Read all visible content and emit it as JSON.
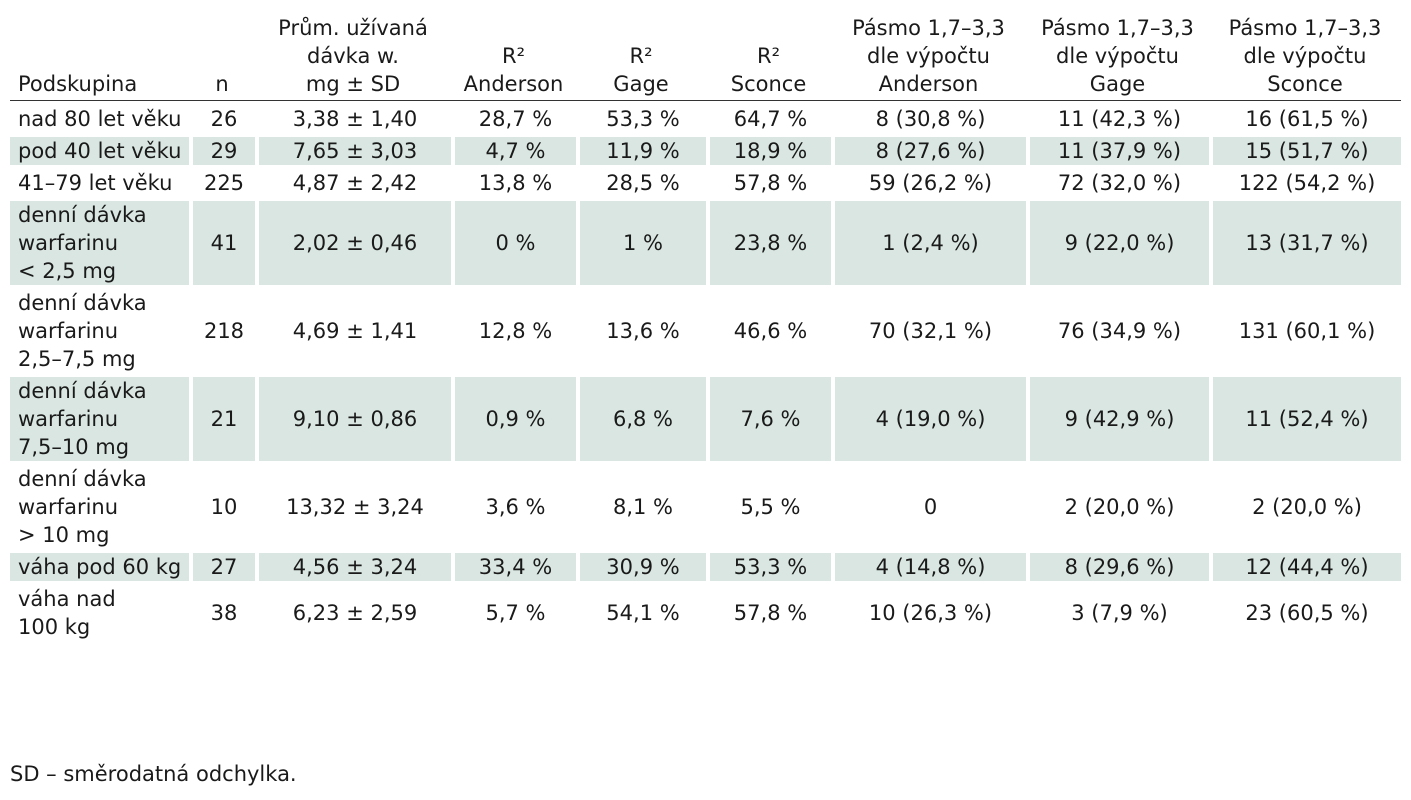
{
  "table": {
    "headers": [
      [
        "Podskupina"
      ],
      [
        "n"
      ],
      [
        "Prům. užívaná",
        "dávka w.",
        "mg ± SD"
      ],
      [
        "R²",
        "Anderson"
      ],
      [
        "R²",
        "Gage"
      ],
      [
        "R²",
        "Sconce"
      ],
      [
        "Pásmo 1,7–3,3",
        "dle výpočtu",
        "Anderson"
      ],
      [
        "Pásmo 1,7–3,3",
        "dle výpočtu",
        "Gage"
      ],
      [
        "Pásmo 1,7–3,3",
        "dle výpočtu",
        "Sconce"
      ]
    ],
    "rows": [
      {
        "shaded": false,
        "label": [
          "nad 80 let věku"
        ],
        "cells": [
          "26",
          "3,38 ± 1,40",
          "28,7 %",
          "53,3 %",
          "64,7 %",
          "8 (30,8 %)",
          "11 (42,3 %)",
          "16 (61,5 %)"
        ]
      },
      {
        "shaded": true,
        "label": [
          "pod 40 let věku"
        ],
        "cells": [
          "29",
          "7,65 ± 3,03",
          "4,7 %",
          "11,9 %",
          "18,9 %",
          "8 (27,6 %)",
          "11 (37,9 %)",
          "15 (51,7 %)"
        ]
      },
      {
        "shaded": false,
        "label": [
          "41–79 let věku"
        ],
        "cells": [
          "225",
          "4,87 ± 2,42",
          "13,8 %",
          "28,5 %",
          "57,8 %",
          "59 (26,2 %)",
          "72 (32,0 %)",
          "122 (54,2 %)"
        ]
      },
      {
        "shaded": true,
        "label": [
          "denní dávka",
          "warfarinu",
          "< 2,5 mg"
        ],
        "cells": [
          "41",
          "2,02 ± 0,46",
          "0 %",
          "1 %",
          "23,8 %",
          "1 (2,4 %)",
          "9 (22,0 %)",
          "13 (31,7 %)"
        ]
      },
      {
        "shaded": false,
        "label": [
          "denní dávka",
          "warfarinu",
          "2,5–7,5 mg"
        ],
        "cells": [
          "218",
          "4,69 ± 1,41",
          "12,8 %",
          "13,6 %",
          "46,6 %",
          "70 (32,1 %)",
          "76 (34,9 %)",
          "131 (60,1 %)"
        ]
      },
      {
        "shaded": true,
        "label": [
          "denní dávka",
          "warfarinu",
          "7,5–10 mg"
        ],
        "cells": [
          "21",
          "9,10 ± 0,86",
          "0,9 %",
          "6,8 %",
          "7,6 %",
          "4 (19,0 %)",
          "9 (42,9 %)",
          "11 (52,4 %)"
        ]
      },
      {
        "shaded": false,
        "label": [
          "denní dávka",
          "warfarinu",
          "> 10 mg"
        ],
        "cells": [
          "10",
          "13,32 ± 3,24",
          "3,6 %",
          "8,1 %",
          "5,5 %",
          "0",
          "2 (20,0 %)",
          "2 (20,0 %)"
        ]
      },
      {
        "shaded": true,
        "label": [
          "váha pod 60 kg"
        ],
        "cells": [
          "27",
          "4,56 ± 3,24",
          "33,4 %",
          "30,9 %",
          "53,3 %",
          "4 (14,8 %)",
          "8 (29,6 %)",
          "12 (44,4 %)"
        ]
      },
      {
        "shaded": false,
        "label": [
          "váha nad",
          "100 kg"
        ],
        "cells": [
          "38",
          "6,23 ± 2,59",
          "5,7 %",
          "54,1 %",
          "57,8 %",
          "10 (26,3 %)",
          "3 (7,9 %)",
          "23 (60,5 %)"
        ]
      }
    ]
  },
  "footnote": "SD – směrodatná odchylka.",
  "colors": {
    "shade": "#d9e6e2",
    "text": "#1a1a1a",
    "rule": "#333333"
  }
}
